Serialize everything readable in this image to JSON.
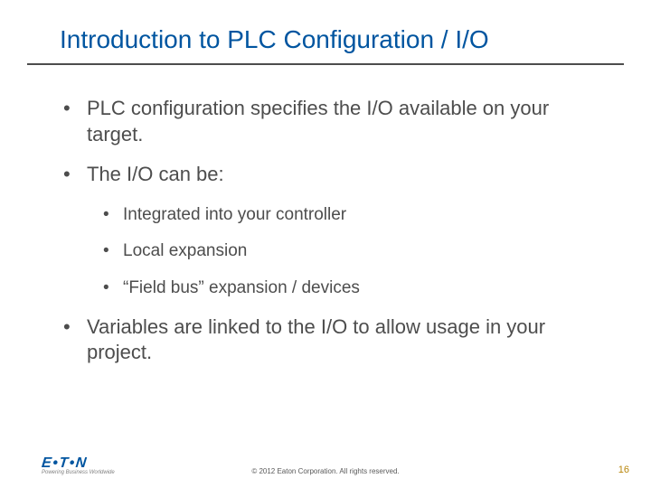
{
  "colors": {
    "title": "#0055a0",
    "body_text": "#4d4d4d",
    "rule": "#4d4d4d",
    "logo": "#0055a0",
    "logo_tag": "#808080",
    "copyright": "#595959",
    "page_num": "#b8860b",
    "background": "#ffffff"
  },
  "typography": {
    "title_fontsize": 28,
    "bullet1_fontsize": 22,
    "bullet2_fontsize": 19,
    "copyright_fontsize": 8,
    "pagenum_fontsize": 11,
    "font_family": "Arial"
  },
  "title": "Introduction to PLC Configuration / I/O",
  "bullets": [
    {
      "text": "PLC configuration specifies the I/O available on your target."
    },
    {
      "text": "The I/O can be:",
      "children": [
        "Integrated into your controller",
        "Local expansion",
        "“Field bus” expansion / devices"
      ]
    },
    {
      "text": "Variables are linked to the I/O to allow usage in your project."
    }
  ],
  "logo": {
    "word": "E•T•N",
    "tagline": "Powering Business Worldwide"
  },
  "copyright": "© 2012 Eaton Corporation. All rights reserved.",
  "page_number": "16"
}
